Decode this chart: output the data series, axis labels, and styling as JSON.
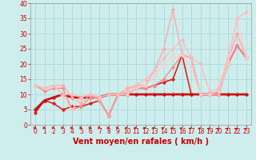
{
  "title": "",
  "xlabel": "Vent moyen/en rafales ( km/h )",
  "ylabel": "",
  "xlim": [
    -0.5,
    23.5
  ],
  "ylim": [
    0,
    40
  ],
  "xticks": [
    0,
    1,
    2,
    3,
    4,
    5,
    6,
    7,
    8,
    9,
    10,
    11,
    12,
    13,
    14,
    15,
    16,
    17,
    18,
    19,
    20,
    21,
    22,
    23
  ],
  "yticks": [
    0,
    5,
    10,
    15,
    20,
    25,
    30,
    35,
    40
  ],
  "background_color": "#ceeeed",
  "grid_color": "#b0d8d8",
  "series": [
    {
      "x": [
        0,
        1,
        2,
        3,
        4,
        5,
        6,
        7,
        8,
        9,
        10,
        11,
        12,
        13,
        14,
        15,
        16,
        17,
        18,
        19,
        20,
        21,
        22,
        23
      ],
      "y": [
        4,
        8,
        7,
        5,
        6,
        6,
        7,
        8,
        3,
        10,
        10,
        12,
        12,
        13,
        14,
        15,
        23,
        10,
        10,
        10,
        11,
        20,
        26,
        22
      ],
      "color": "#dd2222",
      "lw": 1.2,
      "marker": "D"
    },
    {
      "x": [
        0,
        1,
        2,
        3,
        4,
        5,
        6,
        7,
        8,
        9,
        10,
        11,
        12,
        13,
        14,
        15,
        16,
        17,
        18,
        19,
        20,
        21,
        22,
        23
      ],
      "y": [
        5,
        8,
        9,
        10,
        9,
        9,
        9,
        9,
        10,
        10,
        10,
        10,
        10,
        10,
        10,
        10,
        10,
        10,
        10,
        10,
        10,
        10,
        10,
        10
      ],
      "color": "#cc1111",
      "lw": 2.0,
      "marker": "D"
    },
    {
      "x": [
        0,
        1,
        2,
        3,
        4,
        5,
        6,
        7,
        8,
        9,
        10,
        11,
        12,
        13,
        14,
        15,
        16,
        17,
        18,
        19,
        20,
        21,
        22,
        23
      ],
      "y": [
        13,
        11,
        12,
        12,
        5,
        6,
        9,
        9,
        10,
        10,
        10,
        12,
        12,
        13,
        15,
        19,
        23,
        22,
        10,
        10,
        10,
        20,
        26,
        22
      ],
      "color": "#ff8888",
      "lw": 1.0,
      "marker": "D"
    },
    {
      "x": [
        0,
        1,
        2,
        3,
        4,
        5,
        6,
        7,
        8,
        9,
        10,
        11,
        12,
        13,
        14,
        15,
        16,
        17,
        18,
        19,
        20,
        21,
        22,
        23
      ],
      "y": [
        13,
        12,
        13,
        13,
        9,
        7,
        10,
        8,
        3,
        10,
        12,
        13,
        13,
        18,
        25,
        38,
        23,
        22,
        10,
        10,
        10,
        21,
        30,
        22
      ],
      "color": "#ffaaaa",
      "lw": 1.0,
      "marker": "D"
    },
    {
      "x": [
        0,
        1,
        2,
        3,
        4,
        5,
        6,
        7,
        8,
        9,
        10,
        11,
        12,
        13,
        14,
        15,
        16,
        17,
        18,
        19,
        20,
        21,
        22,
        23
      ],
      "y": [
        13,
        12,
        13,
        9,
        5,
        9,
        10,
        9,
        10,
        10,
        10,
        12,
        13,
        16,
        20,
        22,
        23,
        19,
        10,
        10,
        11,
        20,
        35,
        22
      ],
      "color": "#ffcccc",
      "lw": 1.0,
      "marker": "D"
    },
    {
      "x": [
        0,
        1,
        2,
        3,
        4,
        5,
        6,
        7,
        8,
        9,
        10,
        11,
        12,
        13,
        14,
        15,
        16,
        17,
        18,
        19,
        20,
        21,
        22,
        23
      ],
      "y": [
        13,
        12,
        13,
        10,
        10,
        9,
        10,
        9,
        10,
        10,
        11,
        13,
        15,
        18,
        22,
        25,
        28,
        22,
        20,
        11,
        12,
        22,
        35,
        37
      ],
      "color": "#ffbbbb",
      "lw": 1.0,
      "marker": "D"
    }
  ],
  "arrow_angles": [
    5,
    5,
    5,
    5,
    5,
    5,
    5,
    5,
    10,
    20,
    30,
    35,
    40,
    45,
    50,
    55,
    60,
    65,
    65,
    70,
    75,
    75,
    80,
    80
  ],
  "xlabel_color": "#cc0000",
  "xlabel_fontsize": 7,
  "tick_color": "#cc0000",
  "tick_fontsize": 5.5
}
